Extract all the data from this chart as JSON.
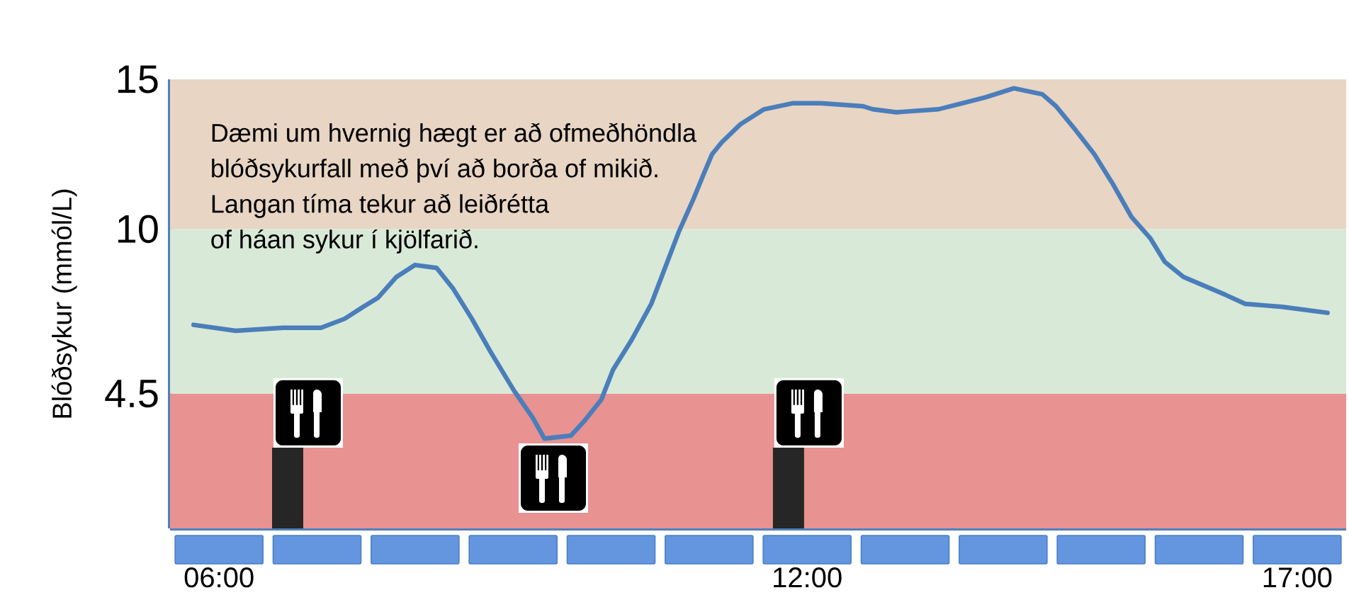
{
  "chart_data": {
    "type": "line",
    "ylabel": "Blóðsykur (mmól/L)",
    "annotations": [
      "Dæmi um hvernig hægt er að ofmeðhöndla",
      "blóðsykurfall með því að borða of mikið.",
      "Langan tíma tekur að leiðrétta",
      "of háan sykur í kjölfarið."
    ],
    "x": [
      5.74,
      6.17,
      6.65,
      7.04,
      7.28,
      7.47,
      7.62,
      7.81,
      8.0,
      8.22,
      8.39,
      8.58,
      8.77,
      9.01,
      9.2,
      9.32,
      9.59,
      9.73,
      9.9,
      10.02,
      10.21,
      10.41,
      10.55,
      10.69,
      10.84,
      10.94,
      11.03,
      11.13,
      11.32,
      11.56,
      11.85,
      12.14,
      12.57,
      12.67,
      12.91,
      13.34,
      13.58,
      13.82,
      14.11,
      14.4,
      14.54,
      14.74,
      14.93,
      15.12,
      15.31,
      15.5,
      15.65,
      15.84,
      16.27,
      16.47,
      16.85,
      17.31
    ],
    "series": [
      {
        "type": "bar",
        "color": "#262626",
        "x": [
          6.7,
          11.81
        ],
        "values": [
          2.7,
          2.7
        ]
      },
      {
        "color": "#4a7ebb",
        "values": [
          6.8,
          6.6,
          6.7,
          6.7,
          7.0,
          7.4,
          7.7,
          8.4,
          8.8,
          8.7,
          8.0,
          7.0,
          5.9,
          4.6,
          3.7,
          3.0,
          3.1,
          3.6,
          4.3,
          5.3,
          6.3,
          7.5,
          8.7,
          9.9,
          11.0,
          11.8,
          12.5,
          12.9,
          13.5,
          14.0,
          14.2,
          14.2,
          14.1,
          14.0,
          13.9,
          14.0,
          14.2,
          14.4,
          14.7,
          14.5,
          14.1,
          13.3,
          12.5,
          11.5,
          10.4,
          9.7,
          8.9,
          8.4,
          7.8,
          7.5,
          7.4,
          7.2
        ]
      }
    ],
    "xlim": [
      5.5,
      17.5
    ],
    "ylim": [
      0,
      15
    ],
    "xticks": [
      {
        "value": 6,
        "label": "06:00"
      },
      {
        "value": 12,
        "label": "12:00"
      },
      {
        "value": 17,
        "label": "17:00"
      }
    ],
    "yticks": [
      4.5,
      10,
      15
    ],
    "bands": [
      {
        "axis": "y",
        "from": 0,
        "to": 4.5,
        "color": "#e89292"
      },
      {
        "axis": "y",
        "from": 4.5,
        "to": 10,
        "color": "#d9e9d7"
      },
      {
        "axis": "y",
        "from": 10,
        "to": 15,
        "color": "#e8d5c4"
      }
    ]
  }
}
